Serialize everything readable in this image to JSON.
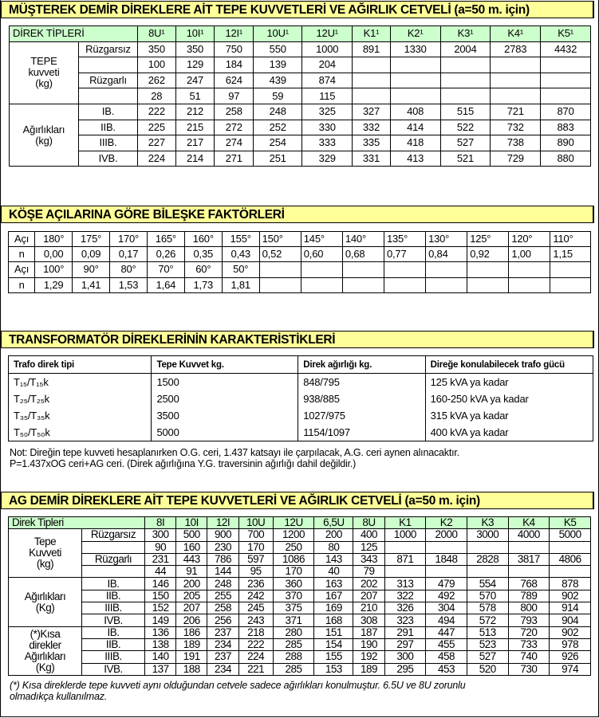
{
  "t1": {
    "title": "MÜŞTEREK DEMİR DİREKLERE AİT TEPE KUVVETLERİ VE AĞIRLIK CETVELİ (a=50 m. için)",
    "header_label": "DİREK TİPLERİ",
    "columns": [
      "8U¹",
      "10I¹",
      "12I¹",
      "10U¹",
      "12U¹",
      "K1¹",
      "K2¹",
      "K3¹",
      "K4¹",
      "K5¹"
    ],
    "groups": [
      {
        "label": "TEPE\nkuvveti\n(kg)",
        "rows": [
          {
            "label": "Rüzgarsız",
            "values": [
              "350",
              "350",
              "750",
              "550",
              "1000",
              "891",
              "1330",
              "2004",
              "2783",
              "4432"
            ]
          },
          {
            "label": "",
            "values": [
              "100",
              "129",
              "184",
              "139",
              "204",
              "",
              "",
              "",
              "",
              ""
            ]
          },
          {
            "label": "Rüzgarlı",
            "values": [
              "262",
              "247",
              "624",
              "439",
              "874",
              "",
              "",
              "",
              "",
              ""
            ]
          },
          {
            "label": "",
            "values": [
              "28",
              "51",
              "97",
              "59",
              "115",
              "",
              "",
              "",
              "",
              ""
            ]
          }
        ]
      },
      {
        "label": "Ağırlıkları\n(kg)",
        "rows": [
          {
            "label": "IB.",
            "values": [
              "222",
              "212",
              "258",
              "248",
              "325",
              "327",
              "408",
              "515",
              "721",
              "870"
            ]
          },
          {
            "label": "IIB.",
            "values": [
              "225",
              "215",
              "272",
              "252",
              "330",
              "332",
              "414",
              "522",
              "732",
              "883"
            ]
          },
          {
            "label": "IIIB.",
            "values": [
              "227",
              "217",
              "274",
              "254",
              "333",
              "335",
              "418",
              "527",
              "738",
              "890"
            ]
          },
          {
            "label": "IVB.",
            "values": [
              "224",
              "214",
              "271",
              "251",
              "329",
              "331",
              "413",
              "521",
              "729",
              "880"
            ]
          }
        ]
      }
    ]
  },
  "t2": {
    "title": "KÖŞE AÇILARINA GÖRE BİLEŞKE FAKTÖRLERİ",
    "rows": [
      {
        "label": "Açı",
        "values": [
          "180°",
          "175°",
          "170°",
          "165°",
          "160°",
          "155°",
          "150°",
          "145°",
          "140°",
          "135°",
          "130°",
          "125°",
          "120°",
          "110°"
        ]
      },
      {
        "label": "n",
        "values": [
          "0,00",
          "0,09",
          "0,17",
          "0,26",
          "0,35",
          "0,43",
          "0,52",
          "0,60",
          "0,68",
          "0,77",
          "0,84",
          "0,92",
          "1,00",
          "1,15"
        ]
      },
      {
        "label": "Açı",
        "values": [
          "100°",
          "90°",
          "80°",
          "70°",
          "60°",
          "50°",
          "",
          "",
          "",
          "",
          "",
          "",
          "",
          ""
        ]
      },
      {
        "label": "n",
        "values": [
          "1,29",
          "1,41",
          "1,53",
          "1,64",
          "1,73",
          "1,81",
          "",
          "",
          "",
          "",
          "",
          "",
          "",
          ""
        ]
      }
    ]
  },
  "t3": {
    "title": "TRANSFORMATÖR DİREKLERİNİN KARAKTERİSTİKLERİ",
    "columns": [
      "Trafo direk tipi",
      "Tepe Kuvvet kg.",
      "Direk ağırlığı kg.",
      "Direğe konulabilecek trafo gücü"
    ],
    "rows": [
      [
        "T₁₅/T₁₅k",
        "1500",
        "848/795",
        "125 kVA ya kadar"
      ],
      [
        "T₂₅/T₂₅k",
        "2500",
        "938/885",
        "160-250 kVA ya kadar"
      ],
      [
        "T₃₅/T₃₅k",
        "3500",
        "1027/975",
        "315 kVA ya kadar"
      ],
      [
        "T₅₀/T₅₀k",
        "5000",
        "1154/1097",
        "400 kVA ya kadar"
      ]
    ],
    "note": "Not: Direğin tepe kuvveti hesaplanırken O.G. ceri, 1.437 katsayı ile çarpılacak, A.G. ceri aynen alınacaktır.\nP=1.437xOG ceri+AG ceri. (Direk ağırlığına Y.G. traversinin ağırlığı dahil değildir.)"
  },
  "t4": {
    "title": "AG DEMİR DİREKLERE AİT TEPE KUVVETLERİ VE AĞIRLIK CETVELİ (a=50 m. için)",
    "header_label": "Direk Tipleri",
    "columns": [
      "8I",
      "10I",
      "12I",
      "10U",
      "12U",
      "6,5U",
      "8U",
      "K1",
      "K2",
      "K3",
      "K4",
      "K5"
    ],
    "groups": [
      {
        "label": "Tepe\nKuvveti\n(kg)",
        "rows": [
          {
            "label": "Rüzgarsız",
            "values": [
              "300",
              "500",
              "900",
              "700",
              "1200",
              "200",
              "400",
              "1000",
              "2000",
              "3000",
              "4000",
              "5000"
            ]
          },
          {
            "label": "",
            "values": [
              "90",
              "160",
              "230",
              "170",
              "250",
              "80",
              "125",
              "",
              "",
              "",
              "",
              ""
            ]
          },
          {
            "label": "Rüzgarlı",
            "values": [
              "231",
              "443",
              "786",
              "597",
              "1086",
              "143",
              "343",
              "871",
              "1848",
              "2828",
              "3817",
              "4806"
            ]
          },
          {
            "label": "",
            "values": [
              "44",
              "91",
              "144",
              "95",
              "170",
              "40",
              "79",
              "",
              "",
              "",
              "",
              ""
            ]
          }
        ]
      },
      {
        "label": "Ağırlıkları\n(Kg)",
        "rows": [
          {
            "label": "IB.",
            "values": [
              "146",
              "200",
              "248",
              "236",
              "360",
              "163",
              "202",
              "313",
              "479",
              "554",
              "768",
              "878"
            ]
          },
          {
            "label": "IIB.",
            "values": [
              "150",
              "205",
              "255",
              "242",
              "370",
              "167",
              "207",
              "322",
              "492",
              "570",
              "789",
              "902"
            ]
          },
          {
            "label": "IIIB.",
            "values": [
              "152",
              "207",
              "258",
              "245",
              "375",
              "169",
              "210",
              "326",
              "304",
              "578",
              "800",
              "914"
            ]
          },
          {
            "label": "IVB.",
            "values": [
              "149",
              "206",
              "256",
              "243",
              "371",
              "168",
              "308",
              "323",
              "494",
              "572",
              "793",
              "904"
            ]
          }
        ]
      },
      {
        "label": "(*)Kısa\ndirekler\nAğırlıkları\n(Kg)",
        "rows": [
          {
            "label": "IB.",
            "values": [
              "136",
              "186",
              "237",
              "218",
              "280",
              "151",
              "187",
              "291",
              "447",
              "513",
              "720",
              "902"
            ]
          },
          {
            "label": "IIB.",
            "values": [
              "138",
              "189",
              "234",
              "222",
              "285",
              "154",
              "190",
              "297",
              "455",
              "523",
              "733",
              "978"
            ]
          },
          {
            "label": "IIIB.",
            "values": [
              "140",
              "191",
              "237",
              "224",
              "288",
              "155",
              "192",
              "300",
              "458",
              "527",
              "740",
              "926"
            ]
          },
          {
            "label": "IVB.",
            "values": [
              "137",
              "188",
              "234",
              "221",
              "285",
              "153",
              "189",
              "295",
              "453",
              "520",
              "730",
              "974"
            ]
          }
        ]
      }
    ],
    "note": "(*) Kısa direklerde tepe kuvveti aynı olduğundan cetvele sadece ağırlıkları konulmuştur. 6.5U ve 8U zorunlu\nolmadıkça kullanılmaz."
  },
  "colors": {
    "title_bg": "#ffff99",
    "header_bg": "#ccffcc",
    "border": "#000000"
  }
}
